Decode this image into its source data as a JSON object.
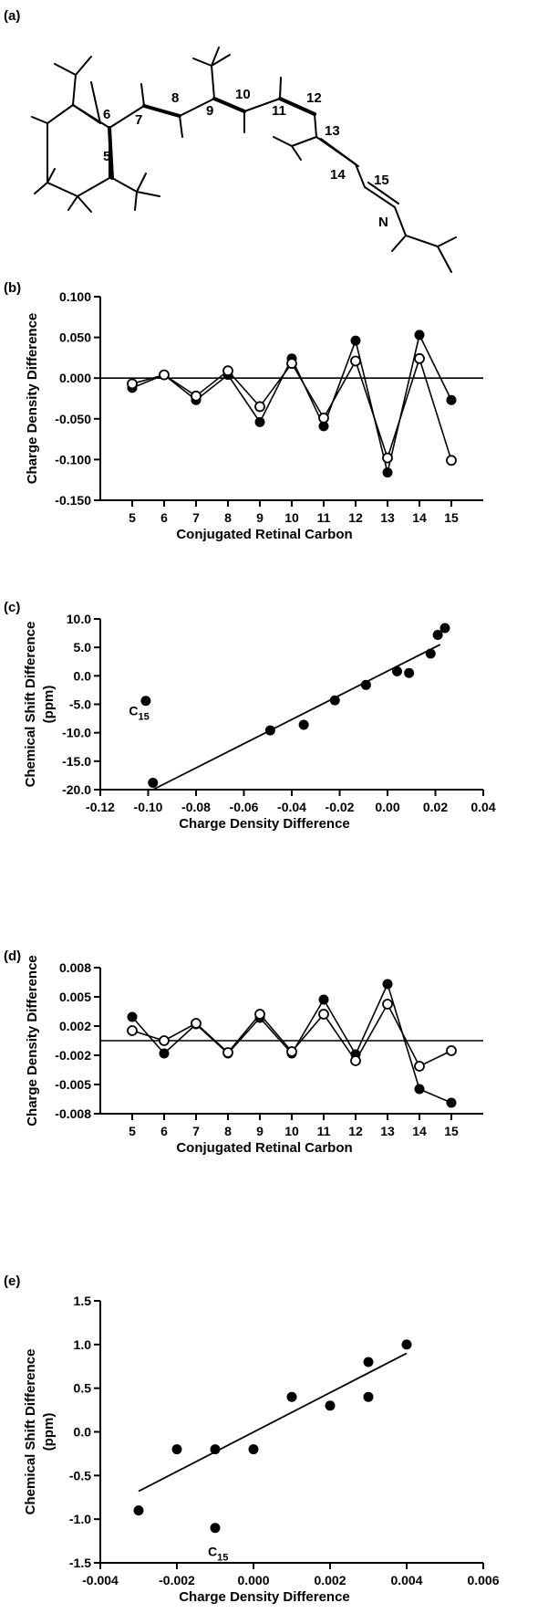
{
  "chart_data": [
    {
      "panel": "(a)",
      "type": "diagram",
      "atom_labels": [
        "5",
        "6",
        "7",
        "8",
        "9",
        "10",
        "11",
        "12",
        "13",
        "14",
        "15",
        "N"
      ]
    },
    {
      "panel": "(b)",
      "type": "line",
      "xlabel": "Conjugated Retinal Carbon",
      "ylabel": "Charge Density Difference",
      "x": [
        5,
        6,
        7,
        8,
        9,
        10,
        11,
        12,
        13,
        14,
        15
      ],
      "xticks": [
        "5",
        "6",
        "7",
        "8",
        "9",
        "10",
        "11",
        "12",
        "13",
        "14",
        "15"
      ],
      "xlim": [
        4,
        16
      ],
      "yticks": [
        "0.100",
        "0.050",
        "0.000",
        "-0.050",
        "-0.100",
        "-0.150"
      ],
      "ylim": [
        -0.15,
        0.1
      ],
      "reference_line": 0,
      "series": [
        {
          "marker": "filled",
          "values": [
            -0.012,
            0.004,
            -0.027,
            0.004,
            -0.054,
            0.024,
            -0.059,
            0.046,
            -0.116,
            0.053,
            -0.027
          ]
        },
        {
          "marker": "open",
          "values": [
            -0.007,
            0.004,
            -0.022,
            0.009,
            -0.035,
            0.018,
            -0.049,
            0.021,
            -0.098,
            0.024,
            -0.101
          ]
        }
      ]
    },
    {
      "panel": "(c)",
      "type": "scatter",
      "xlabel": "Charge Density Difference",
      "ylabel": "Chemical Shift Difference (ppm)",
      "xticks": [
        "-0.12",
        "-0.10",
        "-0.08",
        "-0.06",
        "-0.04",
        "-0.02",
        "0.00",
        "0.02",
        "0.04"
      ],
      "xlim": [
        -0.12,
        0.04
      ],
      "yticks": [
        "10.0",
        "5.0",
        "0.0",
        "-5.0",
        "-10.0",
        "-15.0",
        "-20.0"
      ],
      "ylim": [
        -20,
        10
      ],
      "points": [
        {
          "x": -0.101,
          "y": -4.4
        },
        {
          "x": -0.098,
          "y": -18.8
        },
        {
          "x": -0.049,
          "y": -9.6
        },
        {
          "x": -0.035,
          "y": -8.6
        },
        {
          "x": -0.022,
          "y": -4.3
        },
        {
          "x": -0.009,
          "y": -1.6
        },
        {
          "x": 0.004,
          "y": 0.8
        },
        {
          "x": 0.009,
          "y": 0.5
        },
        {
          "x": 0.018,
          "y": 3.9
        },
        {
          "x": 0.021,
          "y": 7.2
        },
        {
          "x": 0.024,
          "y": 8.4
        }
      ],
      "fit_line": {
        "x": [
          -0.098,
          0.022
        ],
        "y": [
          -20,
          5.5
        ]
      },
      "annotation": {
        "text": "C",
        "sub": "15",
        "x": -0.105,
        "y": -6.9
      }
    },
    {
      "panel": "(d)",
      "type": "line",
      "xlabel": "Conjugated Retinal Carbon",
      "ylabel": "Charge Density Difference",
      "x": [
        5,
        6,
        7,
        8,
        9,
        10,
        11,
        12,
        13,
        14,
        15
      ],
      "xticks": [
        "5",
        "6",
        "7",
        "8",
        "9",
        "10",
        "11",
        "12",
        "13",
        "14",
        "15"
      ],
      "xlim": [
        4,
        16
      ],
      "yticks": [
        "0.008",
        "0.005",
        "0.002",
        "-0.002",
        "-0.005",
        "-0.008"
      ],
      "ylim": [
        -0.008,
        0.008
      ],
      "reference_line": 0,
      "series": [
        {
          "marker": "filled",
          "values": [
            0.0026,
            -0.0014,
            0.0018,
            -0.0014,
            0.0025,
            -0.0014,
            0.0045,
            -0.0015,
            0.0062,
            -0.0053,
            -0.0068
          ]
        },
        {
          "marker": "open",
          "values": [
            0.0011,
            0.0,
            0.0019,
            -0.0013,
            0.0029,
            -0.0012,
            0.0029,
            -0.0022,
            0.004,
            -0.0028,
            -0.0011
          ]
        }
      ]
    },
    {
      "panel": "(e)",
      "type": "scatter",
      "xlabel": "Charge Density Difference",
      "ylabel": "Chemical Shift Difference (ppm)",
      "xticks": [
        "-0.004",
        "-0.002",
        "0.000",
        "0.002",
        "0.004",
        "0.006"
      ],
      "xlim": [
        -0.004,
        0.006
      ],
      "yticks": [
        "1.5",
        "1.0",
        "0.5",
        "0.0",
        "-0.5",
        "-1.0",
        "-1.5"
      ],
      "ylim": [
        -1.5,
        1.5
      ],
      "points": [
        {
          "x": -0.003,
          "y": -0.9
        },
        {
          "x": -0.002,
          "y": -0.2
        },
        {
          "x": -0.001,
          "y": -0.2
        },
        {
          "x": -0.001,
          "y": -1.1
        },
        {
          "x": 0.0,
          "y": -0.2
        },
        {
          "x": 0.001,
          "y": 0.4
        },
        {
          "x": 0.002,
          "y": 0.3
        },
        {
          "x": 0.003,
          "y": 0.4
        },
        {
          "x": 0.003,
          "y": 0.8
        },
        {
          "x": 0.004,
          "y": 1.0
        }
      ],
      "fit_line": {
        "x": [
          -0.003,
          0.004
        ],
        "y": [
          -0.68,
          0.9
        ]
      },
      "annotation": {
        "text": "C",
        "sub": "15",
        "x": -0.001,
        "y": -1.42
      }
    }
  ]
}
